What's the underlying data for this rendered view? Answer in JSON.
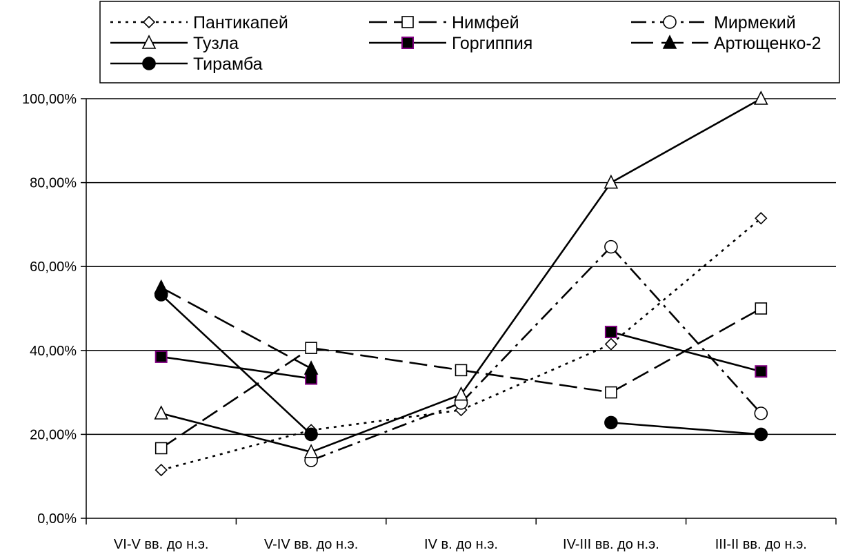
{
  "chart_data": {
    "type": "line",
    "title": "",
    "xlabel": "",
    "ylabel": "",
    "categories": [
      "VI-V вв. до н.э.",
      "V-IV вв. до н.э.",
      "IV в. до н.э.",
      "IV-III вв. до н.э.",
      "III-II вв. до н.э."
    ],
    "ylim": [
      0,
      100
    ],
    "y_ticks": [
      0,
      20,
      40,
      60,
      80,
      100
    ],
    "y_tick_labels": [
      "0,00%",
      "20,00%",
      "40,00%",
      "60,00%",
      "80,00%",
      "100,00%"
    ],
    "grid": true,
    "legend_position": "top",
    "series": [
      {
        "name": "Пантикапей",
        "values": [
          11.5,
          21,
          25.8,
          41.5,
          71.5
        ],
        "marker": "diamond-open",
        "line": "dotted"
      },
      {
        "name": "Нимфей",
        "values": [
          16.7,
          40.6,
          35.3,
          30,
          50
        ],
        "marker": "square-open",
        "line": "dashed"
      },
      {
        "name": "Мирмекий",
        "values": [
          null,
          13.8,
          27.5,
          64.7,
          25
        ],
        "marker": "circle-open",
        "line": "dashdot"
      },
      {
        "name": "Тузла",
        "values": [
          25,
          15.8,
          29.5,
          80,
          100
        ],
        "marker": "triangle-open",
        "line": "solid"
      },
      {
        "name": "Горгиппия",
        "values": [
          38.5,
          33.3,
          null,
          44.4,
          35
        ],
        "marker": "square-filled",
        "line": "solid"
      },
      {
        "name": "Артющенко-2",
        "values": [
          55,
          35.7,
          null,
          null,
          null
        ],
        "marker": "triangle-filled",
        "line": "longdash"
      },
      {
        "name": "Тирамба",
        "values": [
          53.3,
          20,
          null,
          22.8,
          20
        ],
        "marker": "circle-filled",
        "line": "solid"
      }
    ]
  },
  "colors": {
    "line": "#000000",
    "background": "#ffffff",
    "marker_fill_open": "#ffffff",
    "marker_fill_solid": "#000000",
    "gorgippia_marker_outline": "#800080"
  }
}
